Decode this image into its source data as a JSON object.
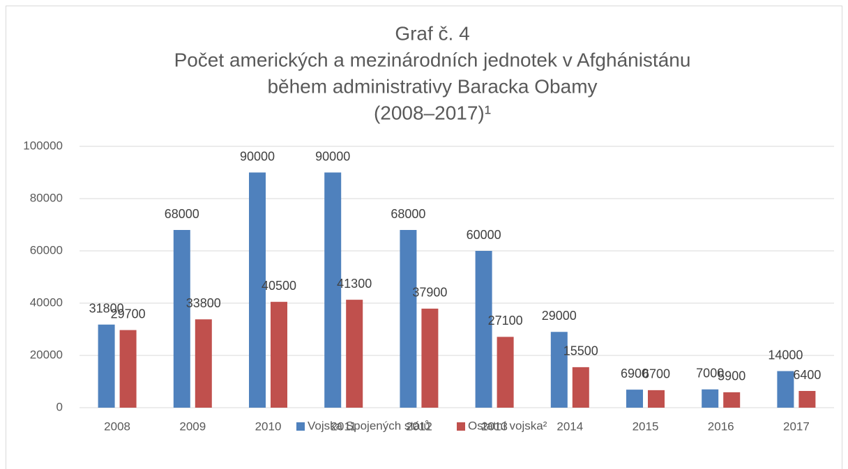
{
  "chart_data": {
    "type": "bar",
    "title": [
      "Graf č. 4",
      "Počet amerických a mezinárodních jednotek v Afghánistánu",
      "během administrativy Baracka Obamy",
      "(2008–2017)¹"
    ],
    "categories": [
      "2008",
      "2009",
      "2010",
      "2011",
      "2012",
      "2013",
      "2014",
      "2015",
      "2016",
      "2017"
    ],
    "series": [
      {
        "name": "Vojska Spojených států",
        "color": "#4f81bd",
        "values": [
          31800,
          68000,
          90000,
          90000,
          68000,
          60000,
          29000,
          6900,
          7000,
          14000
        ]
      },
      {
        "name": "Ostatní vojska²",
        "color": "#c0504d",
        "values": [
          29700,
          33800,
          40500,
          41300,
          37900,
          27100,
          15500,
          6700,
          5900,
          6400
        ]
      }
    ],
    "ylim": [
      0,
      100000
    ],
    "yticks": [
      0,
      20000,
      40000,
      60000,
      80000,
      100000
    ],
    "grid": true,
    "legend": "bottom"
  }
}
